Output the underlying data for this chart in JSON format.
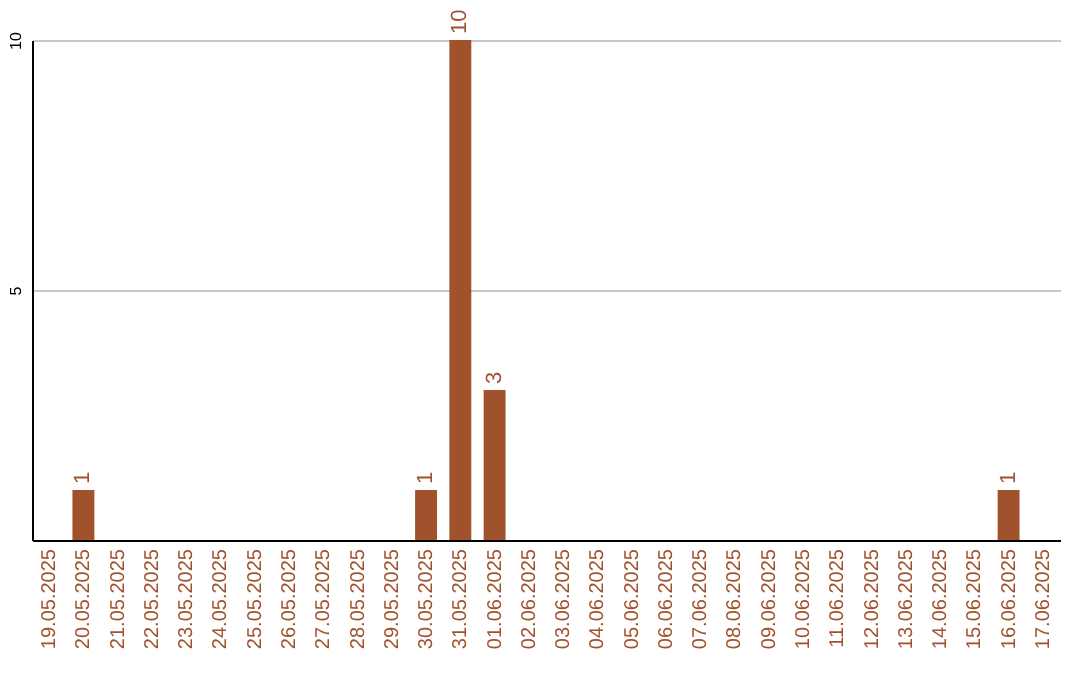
{
  "chart_data": {
    "type": "bar",
    "categories": [
      "19.05.2025",
      "20.05.2025",
      "21.05.2025",
      "22.05.2025",
      "23.05.2025",
      "24.05.2025",
      "25.05.2025",
      "26.05.2025",
      "27.05.2025",
      "28.05.2025",
      "29.05.2025",
      "30.05.2025",
      "31.05.2025",
      "01.06.2025",
      "02.06.2025",
      "03.06.2025",
      "04.06.2025",
      "05.06.2025",
      "06.06.2025",
      "07.06.2025",
      "08.06.2025",
      "09.06.2025",
      "10.06.2025",
      "11.06.2025",
      "12.06.2025",
      "13.06.2025",
      "14.06.2025",
      "15.06.2025",
      "16.06.2025",
      "17.06.2025"
    ],
    "values": [
      0,
      1,
      0,
      0,
      0,
      0,
      0,
      0,
      0,
      0,
      0,
      1,
      10,
      3,
      0,
      0,
      0,
      0,
      0,
      0,
      0,
      0,
      0,
      0,
      0,
      0,
      0,
      0,
      1,
      0
    ],
    "value_labels": [
      null,
      "1",
      null,
      null,
      null,
      null,
      null,
      null,
      null,
      null,
      null,
      "1",
      "10",
      "3",
      null,
      null,
      null,
      null,
      null,
      null,
      null,
      null,
      null,
      null,
      null,
      null,
      null,
      null,
      "1",
      null
    ],
    "color": "#a0522d",
    "ylim": [
      0,
      10
    ],
    "yticks": [
      5,
      10
    ],
    "grid": "y"
  }
}
